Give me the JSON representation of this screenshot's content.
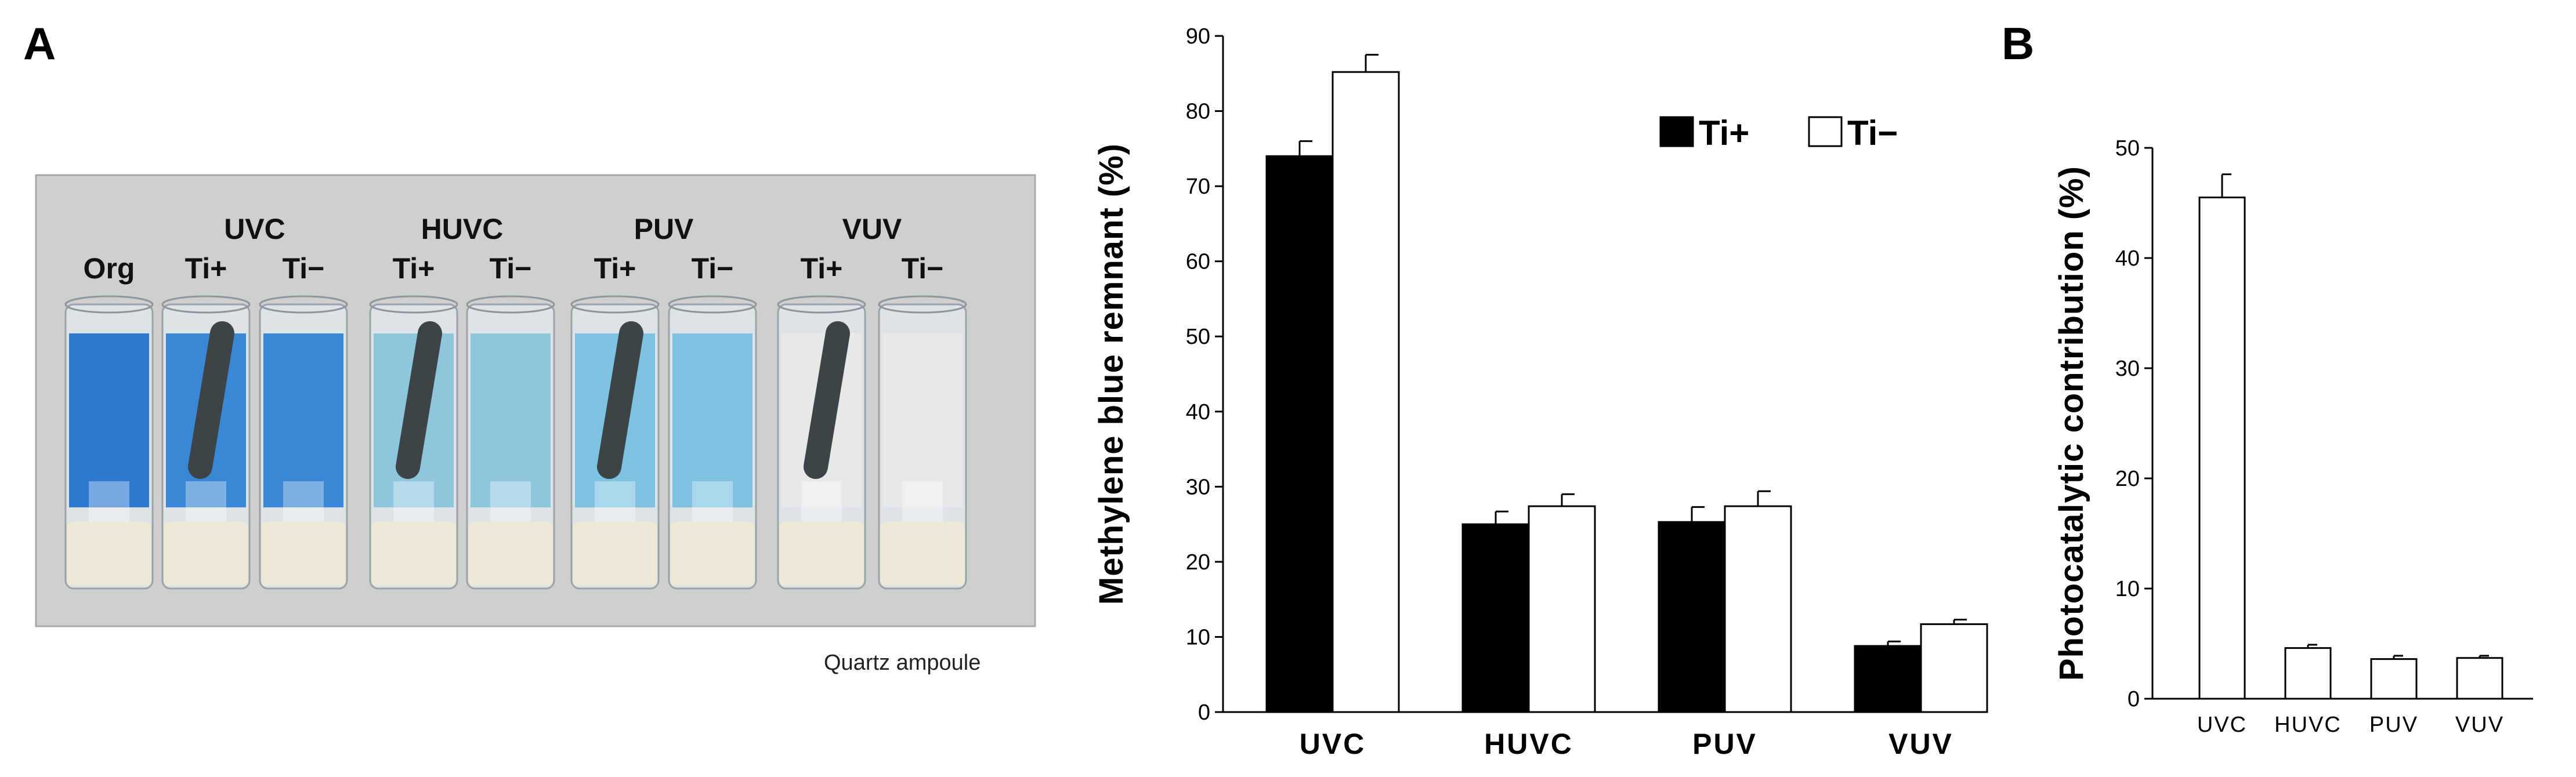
{
  "panel_labels": {
    "a": "A",
    "b": "B"
  },
  "photo": {
    "caption": "Quartz ampoule",
    "org_label": "Org",
    "groups": [
      {
        "name": "UVC",
        "sub": [
          "Ti+",
          "Ti−"
        ]
      },
      {
        "name": "HUVC",
        "sub": [
          "Ti+",
          "Ti−"
        ]
      },
      {
        "name": "PUV",
        "sub": [
          "Ti+",
          "Ti−"
        ]
      },
      {
        "name": "VUV",
        "sub": [
          "Ti+",
          "Ti−"
        ]
      }
    ],
    "colors": {
      "frame_bg": "#cfcfcd",
      "org_liquid": "#1f6fd0",
      "uvc_liquid": "#2a7fd4",
      "huvc_liquid": "#86c3dc",
      "puv_liquid": "#74bfe0",
      "vuv_liquid": "#e7e9e6",
      "rod": "#3c4447",
      "base": "#eee8d6"
    }
  },
  "chart_data": [
    {
      "type": "bar",
      "categories": [
        "UVC",
        "HUVC",
        "PUV",
        "VUV"
      ],
      "series": [
        {
          "name": "Ti+",
          "values": [
            74,
            25,
            25.3,
            8.8
          ],
          "errors": [
            2.0,
            1.7,
            2.0,
            0.6
          ],
          "color": "#000000"
        },
        {
          "name": "Ti−",
          "values": [
            85.2,
            27.4,
            27.4,
            11.7
          ],
          "errors": [
            2.3,
            1.6,
            2.0,
            0.6
          ],
          "color": "#ffffff"
        }
      ],
      "ylabel": "Methylene blue remnant (%)",
      "xlabel": "",
      "ylim": [
        0,
        90
      ],
      "yticks": [
        "0",
        "10",
        "20",
        "30",
        "40",
        "50",
        "60",
        "70",
        "80",
        "90"
      ],
      "legend": "top-right",
      "grid": false
    },
    {
      "type": "bar",
      "categories": [
        "UVC",
        "HUVC",
        "PUV",
        "VUV"
      ],
      "series": [
        {
          "values": [
            45.5,
            4.6,
            3.6,
            3.7
          ],
          "errors": [
            2.1,
            0.3,
            0.3,
            0.2
          ],
          "color": "#ffffff"
        }
      ],
      "ylabel": "Photocatalytic contribution (%)",
      "xlabel": "",
      "ylim": [
        0,
        50
      ],
      "yticks": [
        "0",
        "10",
        "20",
        "30",
        "40",
        "50"
      ],
      "grid": false
    }
  ]
}
